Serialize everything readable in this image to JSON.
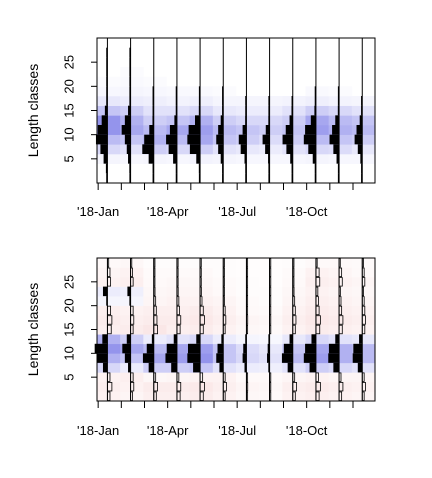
{
  "chart_data": [
    {
      "type": "heatmap",
      "title": "",
      "ylabel": "Length classes",
      "xlabel": "",
      "x_tick_labels": [
        "'18-Jan",
        "'18-Apr",
        "'18-Jul",
        "'18-Oct"
      ],
      "y_tick_labels": [
        "5",
        "10",
        "15",
        "20",
        "25"
      ],
      "y_tick_values": [
        5,
        10,
        15,
        20,
        25
      ],
      "ylim": [
        0,
        30
      ],
      "months": 12,
      "bin_edges": [
        0,
        2,
        4,
        6,
        8,
        10,
        12,
        14,
        16,
        18,
        20,
        22,
        24,
        26,
        28,
        30
      ],
      "sample_month_index": [
        0,
        1,
        2,
        3,
        4,
        5,
        6,
        7,
        8,
        9,
        10,
        11
      ],
      "cell_color": "#3c3cdc",
      "bar_color": "#000000",
      "cell_intensity": [
        [
          0.0,
          0.0,
          0.05,
          0.2,
          0.35,
          0.55,
          0.55,
          0.3,
          0.12,
          0.04,
          0.02,
          0.0,
          0.0,
          0.0,
          0.0
        ],
        [
          0.0,
          0.0,
          0.04,
          0.15,
          0.3,
          0.45,
          0.4,
          0.25,
          0.1,
          0.05,
          0.03,
          0.02,
          0.0,
          0.0,
          0.0
        ],
        [
          0.0,
          0.0,
          0.05,
          0.25,
          0.4,
          0.35,
          0.25,
          0.15,
          0.08,
          0.04,
          0.02,
          0.0,
          0.0,
          0.0,
          0.0
        ],
        [
          0.0,
          0.0,
          0.04,
          0.2,
          0.35,
          0.45,
          0.3,
          0.15,
          0.06,
          0.03,
          0.0,
          0.0,
          0.0,
          0.0,
          0.0
        ],
        [
          0.0,
          0.0,
          0.06,
          0.25,
          0.45,
          0.5,
          0.4,
          0.2,
          0.08,
          0.03,
          0.0,
          0.0,
          0.0,
          0.0,
          0.0
        ],
        [
          0.0,
          0.0,
          0.05,
          0.15,
          0.3,
          0.35,
          0.25,
          0.12,
          0.05,
          0.02,
          0.0,
          0.0,
          0.0,
          0.0,
          0.0
        ],
        [
          0.0,
          0.0,
          0.04,
          0.12,
          0.25,
          0.3,
          0.2,
          0.1,
          0.05,
          0.0,
          0.0,
          0.0,
          0.0,
          0.0,
          0.0
        ],
        [
          0.0,
          0.0,
          0.04,
          0.1,
          0.18,
          0.25,
          0.2,
          0.1,
          0.05,
          0.0,
          0.0,
          0.0,
          0.0,
          0.0,
          0.0
        ],
        [
          0.0,
          0.0,
          0.04,
          0.15,
          0.25,
          0.3,
          0.25,
          0.15,
          0.06,
          0.0,
          0.0,
          0.0,
          0.0,
          0.0,
          0.0
        ],
        [
          0.0,
          0.0,
          0.05,
          0.2,
          0.35,
          0.5,
          0.45,
          0.25,
          0.08,
          0.03,
          0.0,
          0.0,
          0.0,
          0.0,
          0.0
        ],
        [
          0.0,
          0.0,
          0.04,
          0.18,
          0.3,
          0.4,
          0.35,
          0.2,
          0.06,
          0.02,
          0.0,
          0.0,
          0.0,
          0.0,
          0.0
        ],
        [
          0.0,
          0.0,
          0.04,
          0.12,
          0.25,
          0.35,
          0.3,
          0.15,
          0.05,
          0.0,
          0.0,
          0.0,
          0.0,
          0.0,
          0.0
        ]
      ],
      "bars": [
        [
          0.05,
          0.12,
          0.3,
          0.55,
          0.9,
          0.75,
          0.45,
          0.2,
          0.08,
          0.04,
          0.03,
          0.02,
          0.02,
          0.02,
          0.0
        ],
        [
          0.05,
          0.1,
          0.2,
          0.3,
          0.45,
          0.7,
          0.45,
          0.2,
          0.06,
          0.04,
          0.03,
          0.02,
          0.02,
          0.02,
          0.0
        ],
        [
          0.02,
          0.08,
          0.4,
          0.9,
          0.75,
          0.35,
          0.1,
          0.05,
          0.03,
          0.02,
          0.0,
          0.0,
          0.0,
          0.0,
          0.0
        ],
        [
          0.03,
          0.08,
          0.3,
          0.65,
          0.85,
          0.55,
          0.2,
          0.08,
          0.03,
          0.02,
          0.0,
          0.0,
          0.0,
          0.0,
          0.0
        ],
        [
          0.03,
          0.1,
          0.3,
          0.8,
          1.0,
          0.9,
          0.4,
          0.1,
          0.04,
          0.02,
          0.0,
          0.0,
          0.0,
          0.0,
          0.0
        ],
        [
          0.03,
          0.08,
          0.2,
          0.4,
          0.55,
          0.4,
          0.2,
          0.08,
          0.04,
          0.02,
          0.0,
          0.0,
          0.0,
          0.0,
          0.0
        ],
        [
          0.02,
          0.05,
          0.15,
          0.45,
          0.6,
          0.3,
          0.1,
          0.05,
          0.03,
          0.0,
          0.0,
          0.0,
          0.0,
          0.0,
          0.0
        ],
        [
          0.02,
          0.05,
          0.12,
          0.35,
          0.55,
          0.3,
          0.1,
          0.04,
          0.02,
          0.0,
          0.0,
          0.0,
          0.0,
          0.0,
          0.0
        ],
        [
          0.03,
          0.08,
          0.2,
          0.5,
          0.8,
          0.55,
          0.25,
          0.1,
          0.04,
          0.0,
          0.0,
          0.0,
          0.0,
          0.0,
          0.0
        ],
        [
          0.03,
          0.08,
          0.25,
          0.6,
          0.95,
          0.85,
          0.4,
          0.12,
          0.04,
          0.03,
          0.0,
          0.0,
          0.0,
          0.0,
          0.0
        ],
        [
          0.03,
          0.06,
          0.2,
          0.45,
          0.75,
          0.55,
          0.3,
          0.1,
          0.04,
          0.03,
          0.0,
          0.0,
          0.0,
          0.0,
          0.0
        ],
        [
          0.02,
          0.06,
          0.15,
          0.35,
          0.6,
          0.45,
          0.2,
          0.08,
          0.03,
          0.0,
          0.0,
          0.0,
          0.0,
          0.0,
          0.0
        ]
      ]
    },
    {
      "type": "heatmap",
      "title": "",
      "ylabel": "Length classes",
      "xlabel": "",
      "x_tick_labels": [
        "'18-Jan",
        "'18-Apr",
        "'18-Jul",
        "'18-Oct"
      ],
      "y_tick_labels": [
        "5",
        "10",
        "15",
        "20",
        "25"
      ],
      "y_tick_values": [
        5,
        10,
        15,
        20,
        25
      ],
      "ylim": [
        0,
        30
      ],
      "months": 12,
      "bin_edges": [
        0,
        2,
        4,
        6,
        8,
        10,
        12,
        14,
        16,
        18,
        20,
        22,
        24,
        26,
        28,
        30
      ],
      "sample_month_index": [
        0,
        1,
        2,
        3,
        4,
        5,
        6,
        7,
        8,
        9,
        10,
        11
      ],
      "positive_color": "#3c3cdc",
      "negative_color": "#e06060",
      "bar_color": "#000000",
      "cell_value": [
        [
          -0.08,
          -0.1,
          -0.08,
          0.2,
          0.4,
          0.55,
          0.4,
          -0.1,
          -0.12,
          -0.1,
          0.05,
          0.1,
          -0.08,
          -0.06,
          -0.04
        ],
        [
          -0.06,
          -0.08,
          -0.1,
          0.1,
          0.3,
          0.45,
          0.25,
          -0.12,
          -0.1,
          -0.08,
          0.05,
          0.08,
          -0.1,
          -0.08,
          -0.05
        ],
        [
          -0.1,
          -0.12,
          -0.05,
          0.25,
          0.45,
          0.35,
          0.1,
          -0.15,
          -0.12,
          -0.1,
          -0.06,
          -0.05,
          -0.04,
          -0.03,
          -0.02
        ],
        [
          -0.1,
          -0.12,
          -0.06,
          0.25,
          0.5,
          0.45,
          0.15,
          -0.1,
          -0.12,
          -0.1,
          -0.08,
          -0.06,
          -0.05,
          -0.03,
          -0.02
        ],
        [
          -0.12,
          -0.14,
          -0.08,
          0.3,
          0.55,
          0.5,
          0.2,
          -0.12,
          -0.14,
          -0.12,
          -0.08,
          -0.06,
          -0.05,
          -0.04,
          -0.02
        ],
        [
          -0.08,
          -0.1,
          -0.08,
          0.15,
          0.3,
          0.3,
          0.1,
          -0.08,
          -0.1,
          -0.08,
          -0.06,
          -0.04,
          -0.03,
          -0.02,
          -0.02
        ],
        [
          -0.05,
          -0.06,
          -0.04,
          0.1,
          0.2,
          0.18,
          0.05,
          -0.05,
          -0.06,
          -0.04,
          -0.03,
          -0.02,
          -0.02,
          -0.01,
          -0.01
        ],
        [
          -0.04,
          -0.05,
          -0.04,
          0.08,
          0.15,
          0.12,
          0.04,
          -0.04,
          -0.05,
          -0.03,
          -0.02,
          -0.02,
          -0.01,
          -0.01,
          -0.01
        ],
        [
          -0.08,
          -0.1,
          -0.06,
          0.15,
          0.35,
          0.3,
          0.12,
          -0.08,
          -0.1,
          -0.08,
          -0.06,
          -0.05,
          -0.04,
          -0.03,
          -0.02
        ],
        [
          -0.1,
          -0.12,
          -0.08,
          0.25,
          0.5,
          0.45,
          0.2,
          -0.12,
          -0.14,
          -0.12,
          -0.1,
          -0.08,
          -0.1,
          -0.08,
          -0.04
        ],
        [
          -0.08,
          -0.1,
          -0.06,
          0.2,
          0.4,
          0.4,
          0.15,
          -0.1,
          -0.12,
          -0.1,
          -0.08,
          -0.06,
          -0.08,
          -0.06,
          -0.04
        ],
        [
          -0.06,
          -0.08,
          -0.06,
          0.15,
          0.35,
          0.35,
          0.12,
          -0.08,
          -0.1,
          -0.08,
          -0.06,
          -0.05,
          -0.06,
          -0.04,
          -0.03
        ]
      ],
      "bars": [
        [
          -0.2,
          -0.35,
          -0.2,
          0.35,
          0.8,
          1.0,
          0.4,
          -0.3,
          -0.35,
          -0.25,
          0.05,
          0.35,
          -0.25,
          -0.2,
          -0.1
        ],
        [
          -0.15,
          -0.25,
          -0.2,
          0.2,
          0.45,
          0.65,
          0.3,
          -0.2,
          -0.25,
          -0.2,
          0.05,
          0.25,
          -0.2,
          -0.15,
          -0.08
        ],
        [
          -0.2,
          -0.3,
          -0.15,
          0.4,
          0.85,
          0.55,
          0.15,
          -0.3,
          -0.25,
          -0.2,
          -0.15,
          -0.1,
          -0.08,
          -0.05,
          -0.03
        ],
        [
          -0.25,
          -0.3,
          -0.15,
          0.45,
          0.9,
          0.8,
          0.25,
          -0.25,
          -0.3,
          -0.2,
          -0.15,
          -0.1,
          -0.08,
          -0.05,
          -0.03
        ],
        [
          -0.25,
          -0.35,
          -0.2,
          0.55,
          1.0,
          0.95,
          0.3,
          -0.25,
          -0.35,
          -0.25,
          -0.15,
          -0.1,
          -0.08,
          -0.05,
          -0.03
        ],
        [
          -0.15,
          -0.25,
          -0.15,
          0.3,
          0.55,
          0.45,
          0.15,
          -0.15,
          -0.2,
          -0.15,
          -0.1,
          -0.08,
          -0.05,
          -0.03,
          -0.02
        ],
        [
          -0.08,
          -0.1,
          -0.08,
          0.15,
          0.3,
          0.25,
          0.08,
          -0.08,
          -0.1,
          -0.06,
          -0.04,
          -0.03,
          -0.02,
          -0.02,
          -0.01
        ],
        [
          -0.05,
          -0.08,
          -0.05,
          0.1,
          0.2,
          0.15,
          0.05,
          -0.05,
          -0.06,
          -0.04,
          -0.03,
          -0.02,
          -0.02,
          -0.01,
          -0.01
        ],
        [
          -0.2,
          -0.3,
          -0.15,
          0.4,
          0.85,
          0.7,
          0.25,
          -0.2,
          -0.25,
          -0.2,
          -0.15,
          -0.1,
          -0.08,
          -0.05,
          -0.03
        ],
        [
          -0.25,
          -0.35,
          -0.2,
          0.5,
          0.95,
          0.85,
          0.35,
          -0.3,
          -0.35,
          -0.25,
          -0.2,
          -0.15,
          -0.3,
          -0.25,
          -0.1
        ],
        [
          -0.2,
          -0.3,
          -0.15,
          0.45,
          0.85,
          0.8,
          0.3,
          -0.25,
          -0.3,
          -0.2,
          -0.15,
          -0.1,
          -0.25,
          -0.2,
          -0.08
        ],
        [
          -0.15,
          -0.25,
          -0.15,
          0.35,
          0.75,
          0.7,
          0.25,
          -0.2,
          -0.25,
          -0.2,
          -0.15,
          -0.1,
          -0.2,
          -0.15,
          -0.06
        ]
      ]
    }
  ]
}
